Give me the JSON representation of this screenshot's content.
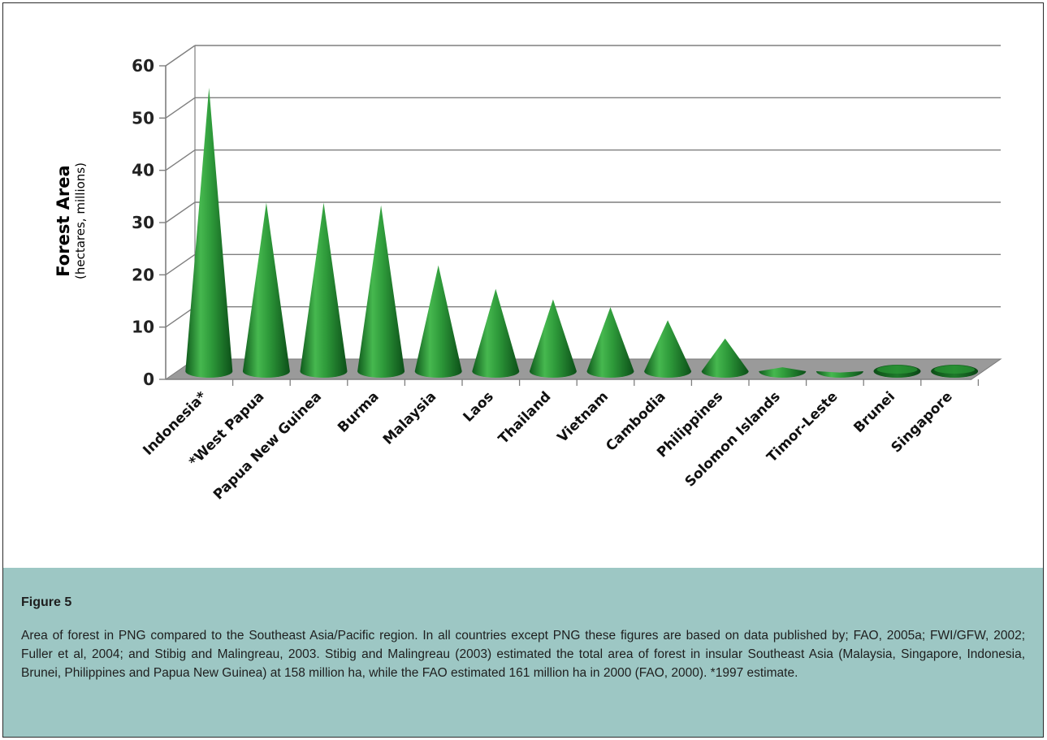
{
  "chart_data": {
    "type": "bar",
    "style": "3d-cone",
    "categories": [
      "Indonesia*",
      "*West Papua",
      "Papua New Guinea",
      "Burma",
      "Malaysia",
      "Laos",
      "Thailand",
      "Vietnam",
      "Cambodia",
      "Philippines",
      "Solomon Islands",
      "Timor-Leste",
      "Brunei",
      "Singapore"
    ],
    "values": [
      55.5,
      33.5,
      33.5,
      33,
      21.5,
      17,
      15,
      13.5,
      11,
      7.5,
      2.0,
      1.0,
      0.5,
      0.2
    ],
    "ylabel_main": "Forest Area",
    "ylabel_sub": "(hectares, millions)",
    "yticks": [
      0,
      10,
      20,
      30,
      40,
      50,
      60
    ],
    "ylim": [
      0,
      60
    ],
    "grid": true,
    "colors": {
      "cone_light": "#3fb24a",
      "cone_dark": "#0f5a1c",
      "floor": "#9a9a9a",
      "grid": "#7f7f7f"
    }
  },
  "caption": {
    "title": "Figure 5",
    "text": "Area of forest in PNG compared to the Southeast Asia/Pacific region. In all countries except PNG these figures are based on data published by; FAO, 2005a; FWI/GFW, 2002; Fuller et al, 2004; and Stibig and Malingreau, 2003. Stibig and Malingreau (2003) estimated the total area of forest in insular Southeast Asia (Malaysia, Singapore, Indonesia, Brunei, Philippines and Papua New Guinea) at 158 million ha, while the FAO estimated 161 million ha in 2000 (FAO, 2000). *1997 estimate."
  }
}
